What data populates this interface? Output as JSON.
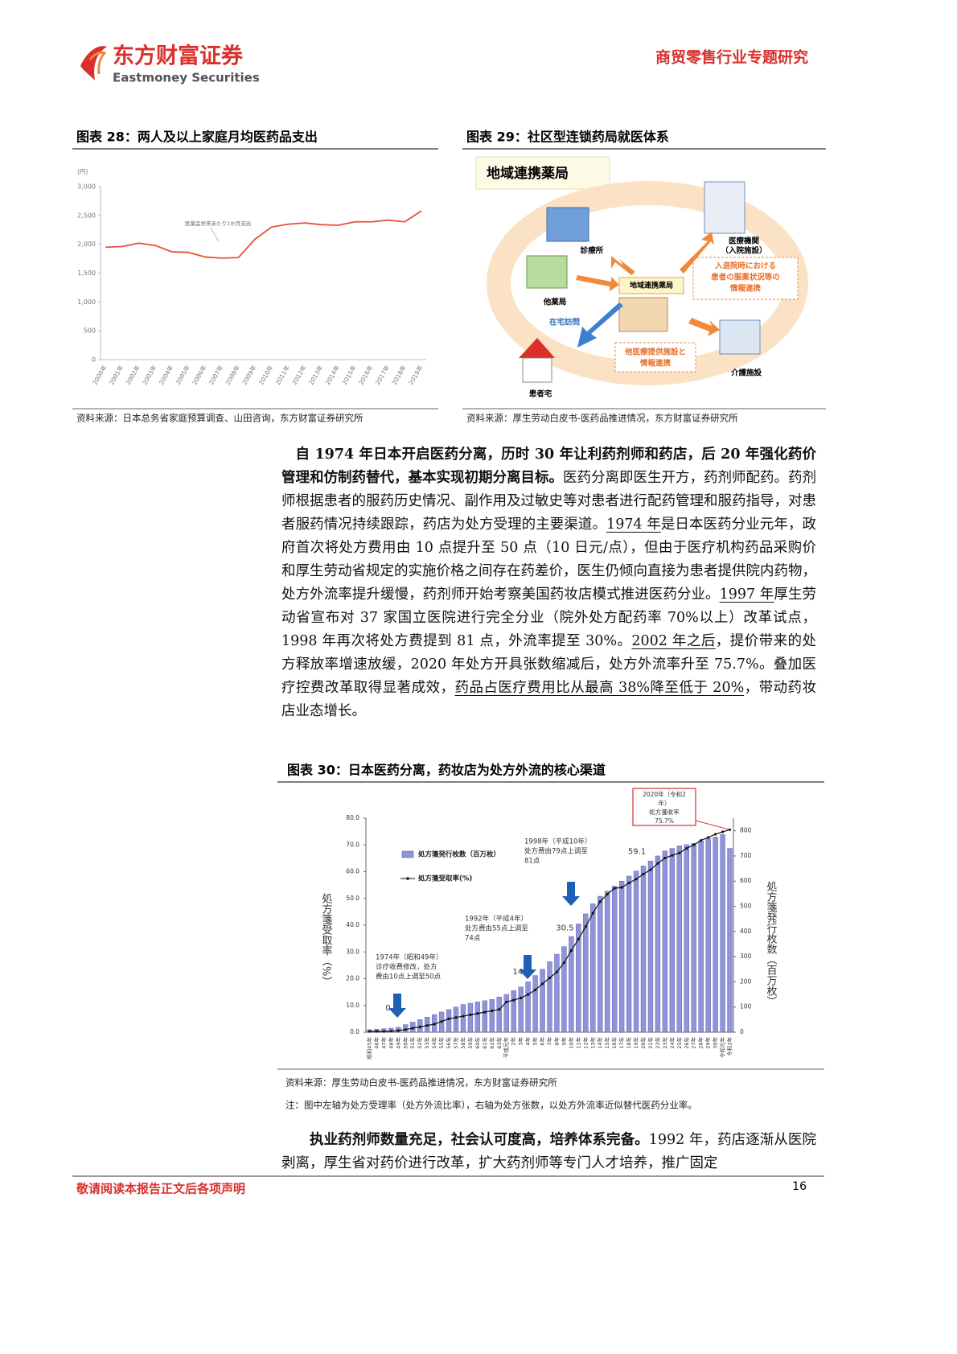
{
  "header": {
    "logo_cn": "东方财富证券",
    "logo_en": "Eastmoney Securities",
    "report_type": "商贸零售行业专题研究"
  },
  "figure28": {
    "title": "图表 28：两人及以上家庭月均医药品支出",
    "source": "资料来源：日本总务省家庭预算调查、山田咨询，东方财富证券研究所",
    "chart": {
      "type": "line",
      "y_unit": "(円)",
      "annotation": "医薬品世帯あたり1か月支出",
      "categories": [
        "2000年",
        "2001年",
        "2002年",
        "2003年",
        "2004年",
        "2005年",
        "2006年",
        "2007年",
        "2008年",
        "2009年",
        "2010年",
        "2011年",
        "2012年",
        "2013年",
        "2014年",
        "2015年",
        "2016年",
        "2017年",
        "2018年",
        "2019年"
      ],
      "values": [
        1950,
        1960,
        2020,
        1980,
        1870,
        1860,
        1780,
        1760,
        1770,
        2090,
        2300,
        2350,
        2370,
        2340,
        2330,
        2390,
        2390,
        2420,
        2390,
        2580
      ],
      "color": "#e8503a",
      "ylim": [
        0,
        3000
      ],
      "yticks": [
        0,
        500,
        {
          "value": 1000,
          "label": "1,000"
        },
        {
          "value": 1500,
          "label": "1,500"
        },
        {
          "value": 2000,
          "label": "2,000"
        },
        {
          "value": 2500,
          "label": "2,500"
        },
        {
          "value": 3000,
          "label": "3,000"
        }
      ]
    }
  },
  "figure29": {
    "title": "图表 29：社区型连锁药局就医体系",
    "source": "资料来源：厚生劳动白皮书-医药品推进情况，东方财富证券研究所",
    "diagram": {
      "heading": "地域連携薬局",
      "center": "地域連携薬局",
      "clinic": "診療所",
      "hospital": [
        "医療機関",
        "（入院施設）"
      ],
      "hospital_link": [
        "入退院時における",
        "患者の服薬状況等の",
        "情報連携"
      ],
      "other_pharmacy": "他薬局",
      "home_visit": "在宅訪問",
      "facility_link": [
        "他医療提供施設と",
        "情報連携"
      ],
      "care_facility": "介護施設",
      "patient_home": "患者宅"
    }
  },
  "body": {
    "paragraphs": [
      {
        "runs": [
          {
            "text": "自 1974 年日本开启医药分离，历时 30 年让利药剂师和药店，后 20 年强化药价管理和仿制药替代，基本实现初期分离目标。",
            "bold": true
          },
          {
            "text": "医药分离即医生开方，药剂师配药。药剂师根据患者的服药历史情况、副作用及过敏史等对患者进行配药管理和服药指导，对患者服药情况持续跟踪，药店为处方受理的主要渠道。"
          },
          {
            "text": "1974 年",
            "underline": true
          },
          {
            "text": "是日本医药分业元年，政府首次将处方费用由 10 点提升至 50 点（10 日元/点），但由于医疗机构药品采购价和厚生劳动省规定的实施价格之间存在药差价，医生仍倾向直接为患者提供院内药物，处方外流率提升缓慢，药剂师开始考察美国药妆店模式推进医药分业。"
          },
          {
            "text": "1997 年",
            "underline": true
          },
          {
            "text": "厚生劳动省宣布对 37 家国立医院进行完全分业（院外处方配药率 70%以上）改革试点，1998 年再次将处方费提到 81 点，外流率提至 30%。"
          },
          {
            "text": "2002 年之后",
            "underline": true
          },
          {
            "text": "，提价带来的处方释放率增速放缓，2020 年处方开具张数缩减后，处方外流率升至 75.7%。叠加医疗控费改革取得显著成效，"
          },
          {
            "text": "药品占医疗费用比从最高 38%降至低于 20%",
            "underline": true
          },
          {
            "text": "，带动药妆店业态增长。"
          }
        ]
      },
      {
        "runs": [
          {
            "text": "执业药剂师数量充足，社会认可度高，培养体系完备。",
            "bold": true
          },
          {
            "text": "1992 年，药店逐渐从医院剥离，厚生省对药价进行改革，扩大药剂师等专门人才培养，推广固定"
          }
        ]
      }
    ]
  },
  "figure30": {
    "title": "图表 30：日本医药分离，药妆店为处方外流的核心渠道",
    "source": "资料来源：厚生劳动白皮书-医药品推进情况，东方财富证券研究所",
    "note": "注：图中左轴为处方受理率（处方外流比率），右轴为处方张数，以处方外流率近似替代医药分业率。",
    "chart": {
      "type": "bar-line",
      "ylabel": "処方箋受取率（%）",
      "y2label": "処方箋発行枚数（百万枚）",
      "categories": [
        "昭和45年",
        "46年",
        "47年",
        "48年",
        "49年",
        "50年",
        "51年",
        "52年",
        "53年",
        "54年",
        "55年",
        "56年",
        "57年",
        "58年",
        "59年",
        "60年",
        "61年",
        "62年",
        "63年",
        "平成元年",
        "2年",
        "3年",
        "4年",
        "5年",
        "6年",
        "7年",
        "8年",
        "9年",
        "10年",
        "11年",
        "12年",
        "13年",
        "14年",
        "15年",
        "16年",
        "17年",
        "18年",
        "19年",
        "20年",
        "21年",
        "22年",
        "23年",
        "24年",
        "25年",
        "26年",
        "27年",
        "28年",
        "29年",
        "30年",
        "令和元年",
        "令和2年"
      ],
      "series": [
        {
          "name": "処方箋発行枚数（百万枚）",
          "type": "bar",
          "axis": "y2",
          "color": "#8f94d8",
          "values": [
            10,
            12,
            14,
            16,
            20,
            30,
            40,
            50,
            60,
            70,
            80,
            90,
            100,
            110,
            115,
            120,
            125,
            130,
            140,
            150,
            165,
            180,
            200,
            225,
            250,
            280,
            310,
            340,
            380,
            430,
            470,
            510,
            540,
            560,
            580,
            600,
            620,
            640,
            660,
            680,
            700,
            720,
            730,
            740,
            745,
            750,
            760,
            770,
            775,
            785,
            730
          ]
        },
        {
          "name": "処方箋受取率(%)",
          "type": "line",
          "color": "#111111",
          "values": [
            0.3,
            0.3,
            0.3,
            0.4,
            0.6,
            1.0,
            1.5,
            2.0,
            2.5,
            3.0,
            4.0,
            5.0,
            5.5,
            6.0,
            6.5,
            7.0,
            7.5,
            8.0,
            8.5,
            11.3,
            12.0,
            12.8,
            14.1,
            15.8,
            18.1,
            20.3,
            22.5,
            26.0,
            30.5,
            34.8,
            39.5,
            44.5,
            48.8,
            51.6,
            53.8,
            54.1,
            55.8,
            57.2,
            59.1,
            60.7,
            63.1,
            65.1,
            66.1,
            67.0,
            68.7,
            70.0,
            71.7,
            72.8,
            74.0,
            74.9,
            75.7
          ],
          "value_labels": [
            null,
            null,
            null,
            null,
            "0.6",
            null,
            null,
            null,
            null,
            null,
            null,
            null,
            null,
            null,
            null,
            null,
            null,
            null,
            null,
            null,
            null,
            null,
            "14.1",
            null,
            null,
            null,
            null,
            null,
            "30.5",
            null,
            null,
            null,
            null,
            null,
            null,
            null,
            null,
            null,
            "59.1",
            null,
            null,
            null,
            null,
            null,
            null,
            null,
            null,
            null,
            null,
            null,
            null
          ]
        }
      ],
      "ylim": [
        0,
        80
      ],
      "yticks": [
        {
          "value": 0,
          "label": "0.0"
        },
        {
          "value": 10,
          "label": "10.0"
        },
        {
          "value": 20,
          "label": "20.0"
        },
        {
          "value": 30,
          "label": "30.0"
        },
        {
          "value": 40,
          "label": "40.0"
        },
        {
          "value": 50,
          "label": "50.0"
        },
        {
          "value": 60,
          "label": "60.0"
        },
        {
          "value": 70,
          "label": "70.0"
        },
        {
          "value": 80,
          "label": "80.0"
        }
      ],
      "y2lim": [
        0,
        850
      ],
      "y2ticks": [
        0,
        100,
        200,
        300,
        400,
        500,
        600,
        700,
        800
      ],
      "annotations": [
        [
          "1974年（昭和49年）",
          "诊疗收费修改，处方",
          "费由10点上调至50点"
        ],
        [
          "1992年（平成4年）",
          "处方费由55点上调至",
          "74点"
        ],
        [
          "1998年（平成10年）",
          "处方费由79点上调至",
          "81点"
        ],
        [
          "2020年（令和2",
          "年）",
          "処方箋收率",
          "75.7%"
        ]
      ]
    }
  },
  "footer": {
    "disclaimer": "敬请阅读本报告正文后各项声明",
    "page": 16
  }
}
